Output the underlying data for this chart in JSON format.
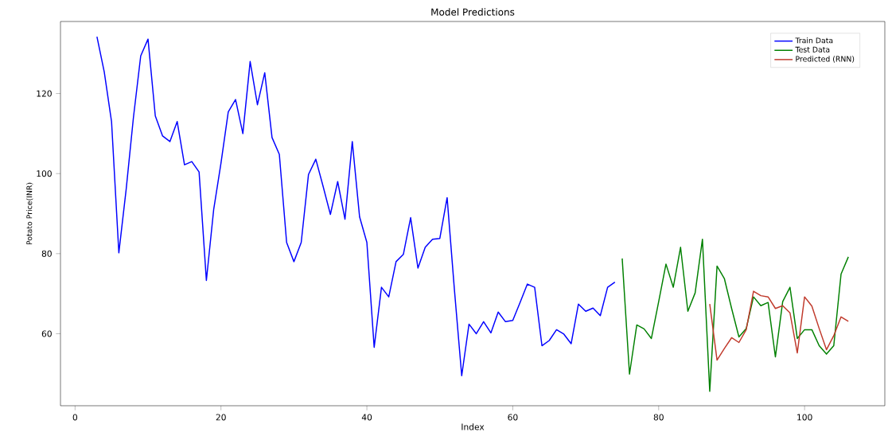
{
  "chart_data": {
    "type": "line",
    "title": "Model Predictions",
    "xlabel": "Index",
    "ylabel": "Potato Price(INR)",
    "xlim": [
      -2,
      111
    ],
    "ylim": [
      42,
      138
    ],
    "xticks": [
      0,
      20,
      40,
      60,
      80,
      100
    ],
    "yticks": [
      60,
      80,
      100,
      120
    ],
    "legend": "top right",
    "marker": "none",
    "line_style": "solid",
    "series": [
      {
        "name": "Train Data",
        "color": "#0000ff",
        "x": [
          3,
          4,
          5,
          6,
          7,
          8,
          9,
          10,
          11,
          12,
          13,
          14,
          15,
          16,
          17,
          18,
          19,
          20,
          21,
          22,
          23,
          24,
          25,
          26,
          27,
          28,
          29,
          30,
          31,
          32,
          33,
          34,
          35,
          36,
          37,
          38,
          39,
          40,
          41,
          42,
          43,
          44,
          45,
          46,
          47,
          48,
          49,
          50,
          51,
          52,
          53,
          54,
          55,
          56,
          57,
          58,
          59,
          60,
          61,
          62,
          63,
          64,
          65,
          66,
          67,
          68,
          69,
          70,
          71,
          72,
          73,
          74
        ],
        "values": [
          134.2,
          125.4,
          113,
          80.2,
          96,
          114,
          129.4,
          133.6,
          114.4,
          109.4,
          108,
          113,
          102.2,
          103,
          100.4,
          73.3,
          91,
          102.6,
          115.4,
          118.5,
          110,
          128,
          117.2,
          125.2,
          109,
          104.8,
          82.8,
          78,
          82.8,
          99.8,
          103.6,
          96.8,
          89.8,
          98,
          88.6,
          108,
          89.2,
          82.8,
          56.6,
          71.6,
          69.2,
          78,
          79.8,
          89,
          76.4,
          81.6,
          83.6,
          83.8,
          94,
          71,
          49.5,
          62.4,
          60,
          63,
          60.2,
          65.4,
          63,
          63.3,
          67.8,
          72.4,
          71.6,
          57,
          58.3,
          61,
          59.9,
          57.5,
          67.4,
          65.6,
          66.4,
          64.5,
          71.6,
          72.9
        ]
      },
      {
        "name": "Test Data",
        "color": "#008000",
        "x": [
          75,
          76,
          77,
          78,
          79,
          80,
          81,
          82,
          83,
          84,
          85,
          86,
          87,
          88,
          89,
          90,
          91,
          92,
          93,
          94,
          95,
          96,
          97,
          98,
          99,
          100,
          101,
          102,
          103,
          104,
          105,
          106
        ],
        "values": [
          78.8,
          49.9,
          62.2,
          61.2,
          58.8,
          68,
          77.4,
          71.6,
          81.6,
          65.6,
          70.2,
          83.6,
          45.6,
          76.9,
          73.8,
          66.3,
          59.2,
          61.3,
          69.2,
          67,
          67.8,
          54.2,
          68,
          71.6,
          58.8,
          61,
          61,
          57,
          54.9,
          57,
          74.9,
          79.2
        ]
      },
      {
        "name": "Predicted (RNN)",
        "color": "#c0392b",
        "x": [
          87,
          88,
          89,
          90,
          91,
          92,
          93,
          94,
          95,
          96,
          97,
          98,
          99,
          100,
          101,
          102,
          103,
          104,
          105,
          106
        ],
        "values": [
          67.4,
          53.4,
          56.3,
          59,
          57.8,
          61,
          70.6,
          69.5,
          69.2,
          66.3,
          67,
          65.2,
          55.2,
          69.2,
          66.9,
          61.3,
          56,
          59.5,
          64.2,
          63.1
        ]
      }
    ]
  }
}
